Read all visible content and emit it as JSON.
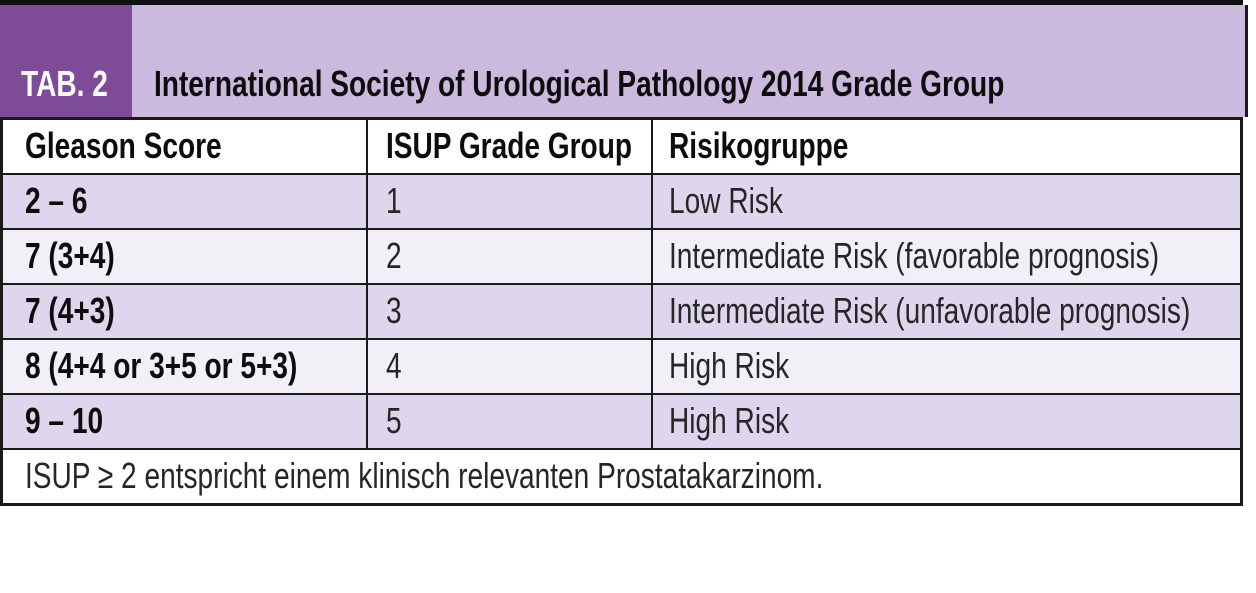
{
  "header": {
    "tab_label": "TAB. 2",
    "title": "International Society of Urological Pathology 2014 Grade Group"
  },
  "table": {
    "columns": [
      "Gleason Score",
      "ISUP Grade Group",
      "Risikogruppe"
    ],
    "rows": [
      {
        "gleason": "2 – 6",
        "isup": "1",
        "risk": "Low Risk"
      },
      {
        "gleason": "7 (3+4)",
        "isup": "2",
        "risk": "Intermediate Risk (favorable prognosis)"
      },
      {
        "gleason": "7 (4+3)",
        "isup": "3",
        "risk": "Intermediate Risk (unfavorable prognosis)"
      },
      {
        "gleason": "8 (4+4 or 3+5 or 5+3)",
        "isup": "4",
        "risk": "High Risk"
      },
      {
        "gleason": "9 – 10",
        "isup": "5",
        "risk": "High Risk"
      }
    ],
    "footnote": "ISUP ≥ 2 entspricht einem klinisch relevanten Prostatakarzinom."
  },
  "colors": {
    "accent_dark_purple": "#7e4b99",
    "accent_light_purple": "#cbb9de",
    "row_shaded": "#ded6ec",
    "row_light": "#f2eff7",
    "border_black": "#1a1a1a"
  }
}
